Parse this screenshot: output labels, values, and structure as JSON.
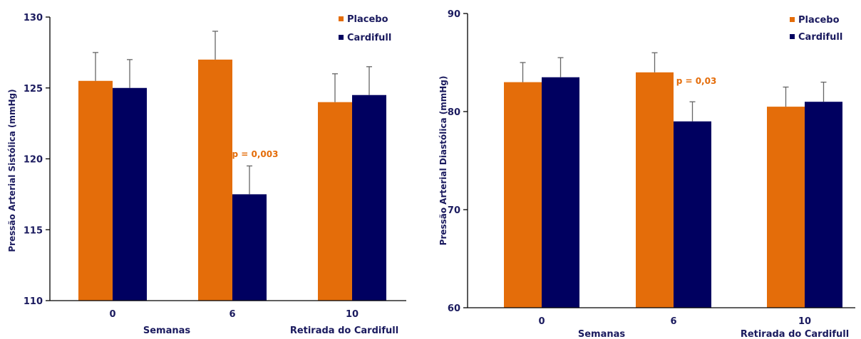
{
  "colors": {
    "placebo": "#e46d0a",
    "cardifull": "#000060"
  },
  "chart_data": [
    {
      "type": "bar",
      "categories": [
        "0",
        "6",
        "10"
      ],
      "xlabel_parts": [
        "Semanas",
        "Retirada do Cardifull"
      ],
      "ylabel": "Pressão Arterial Sistólica (mmHg)",
      "ylim": [
        110,
        130
      ],
      "yticks": [
        110,
        115,
        120,
        125,
        130
      ],
      "series": [
        {
          "name": "Placebo",
          "values": [
            125.5,
            127,
            124
          ],
          "err_top": [
            127.5,
            129,
            126
          ]
        },
        {
          "name": "Cardifull",
          "values": [
            125,
            117.5,
            124.5
          ],
          "err_top": [
            127,
            119.5,
            126.5
          ]
        }
      ],
      "annotations": [
        {
          "text": "p = 0,003",
          "category": "6"
        }
      ],
      "legend_position": "top-right"
    },
    {
      "type": "bar",
      "categories": [
        "0",
        "6",
        "10"
      ],
      "xlabel_parts": [
        "Semanas",
        "Retirada  do Cardifull"
      ],
      "ylabel": "Pressão Arterial Diastólica (mmHg)",
      "ylim": [
        60,
        90
      ],
      "yticks": [
        60,
        70,
        80,
        90
      ],
      "series": [
        {
          "name": "Placebo",
          "values": [
            83,
            84,
            80.5
          ],
          "err_top": [
            85,
            86,
            82.5
          ]
        },
        {
          "name": "Cardifull",
          "values": [
            83.5,
            79,
            81
          ],
          "err_top": [
            85.5,
            81,
            83
          ]
        }
      ],
      "annotations": [
        {
          "text": "p = 0,03",
          "category": "6"
        }
      ],
      "legend_position": "top-right"
    }
  ]
}
